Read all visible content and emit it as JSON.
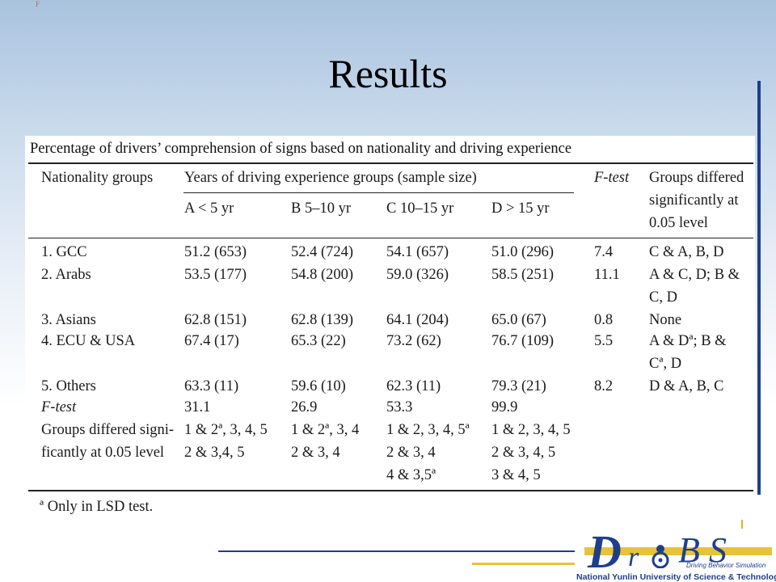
{
  "slide": {
    "title": "Results",
    "corner_mark": "F"
  },
  "table": {
    "caption": "Percentage of drivers’ comprehension of signs based on nationality and driving experience",
    "header": {
      "nationality": "Nationality groups",
      "years": "Years of driving experience groups (sample size)",
      "ftest": "F-test",
      "groups_differed": [
        "Groups differed",
        "significantly at",
        "0.05 level"
      ],
      "subheaders": [
        "A < 5 yr",
        "B 5–10 yr",
        "C 10–15 yr",
        "D > 15 yr"
      ]
    },
    "rows": [
      {
        "nationality": "1. GCC",
        "a": "51.2 (653)",
        "b": "52.4 (724)",
        "c": "54.1 (657)",
        "d": "51.0 (296)",
        "f": "7.4",
        "differed": [
          "C & A, B, D"
        ]
      },
      {
        "nationality": "2. Arabs",
        "a": "53.5 (177)",
        "b": "54.8 (200)",
        "c": "59.0 (326)",
        "d": "58.5 (251)",
        "f": "11.1",
        "differed": [
          "A & C, D; B &",
          "C, D"
        ]
      },
      {
        "nationality": "3. Asians",
        "a": "62.8 (151)",
        "b": "62.8 (139)",
        "c": "64.1 (204)",
        "d": "65.0 (67)",
        "f": "0.8",
        "differed": [
          "None"
        ]
      },
      {
        "nationality": "4. ECU & USA",
        "a": "67.4 (17)",
        "b": "65.3 (22)",
        "c": "73.2 (62)",
        "d": "76.7 (109)",
        "f": "5.5",
        "differed": [
          "A & Dª; B &",
          "Cª, D"
        ]
      },
      {
        "nationality": "5. Others",
        "a": "63.3 (11)",
        "b": "59.6 (10)",
        "c": "62.3 (11)",
        "d": "79.3 (21)",
        "f": "8.2",
        "differed": [
          "D & A, B, C"
        ]
      }
    ],
    "ftest_row": {
      "label": "F-test",
      "a": "31.1",
      "b": "26.9",
      "c": "53.3",
      "d": "99.9"
    },
    "sig_row": {
      "label": [
        "Groups differed signi-",
        "ficantly at 0.05 level"
      ],
      "a": [
        "1 & 2ª, 3, 4, 5",
        "2 & 3,4, 5"
      ],
      "b": [
        "1 & 2ª, 3, 4",
        "2 & 3, 4"
      ],
      "c": [
        "1 & 2, 3, 4, 5ª",
        "2 & 3, 4",
        "4 & 3,5ª"
      ],
      "d": [
        "1 & 2, 3, 4, 5",
        "2 & 3, 4, 5",
        "3 & 4, 5"
      ]
    },
    "footnote": "ª Only in LSD test."
  },
  "logo": {
    "d": "D",
    "r": "r",
    "b": "B",
    "s": "S",
    "subtitle": "Driving Behavior Simulation",
    "university": "National Yunlin University of Science & Technology",
    "colors": {
      "blue": "#1f3f8a",
      "gold": "#e8c23a"
    }
  }
}
